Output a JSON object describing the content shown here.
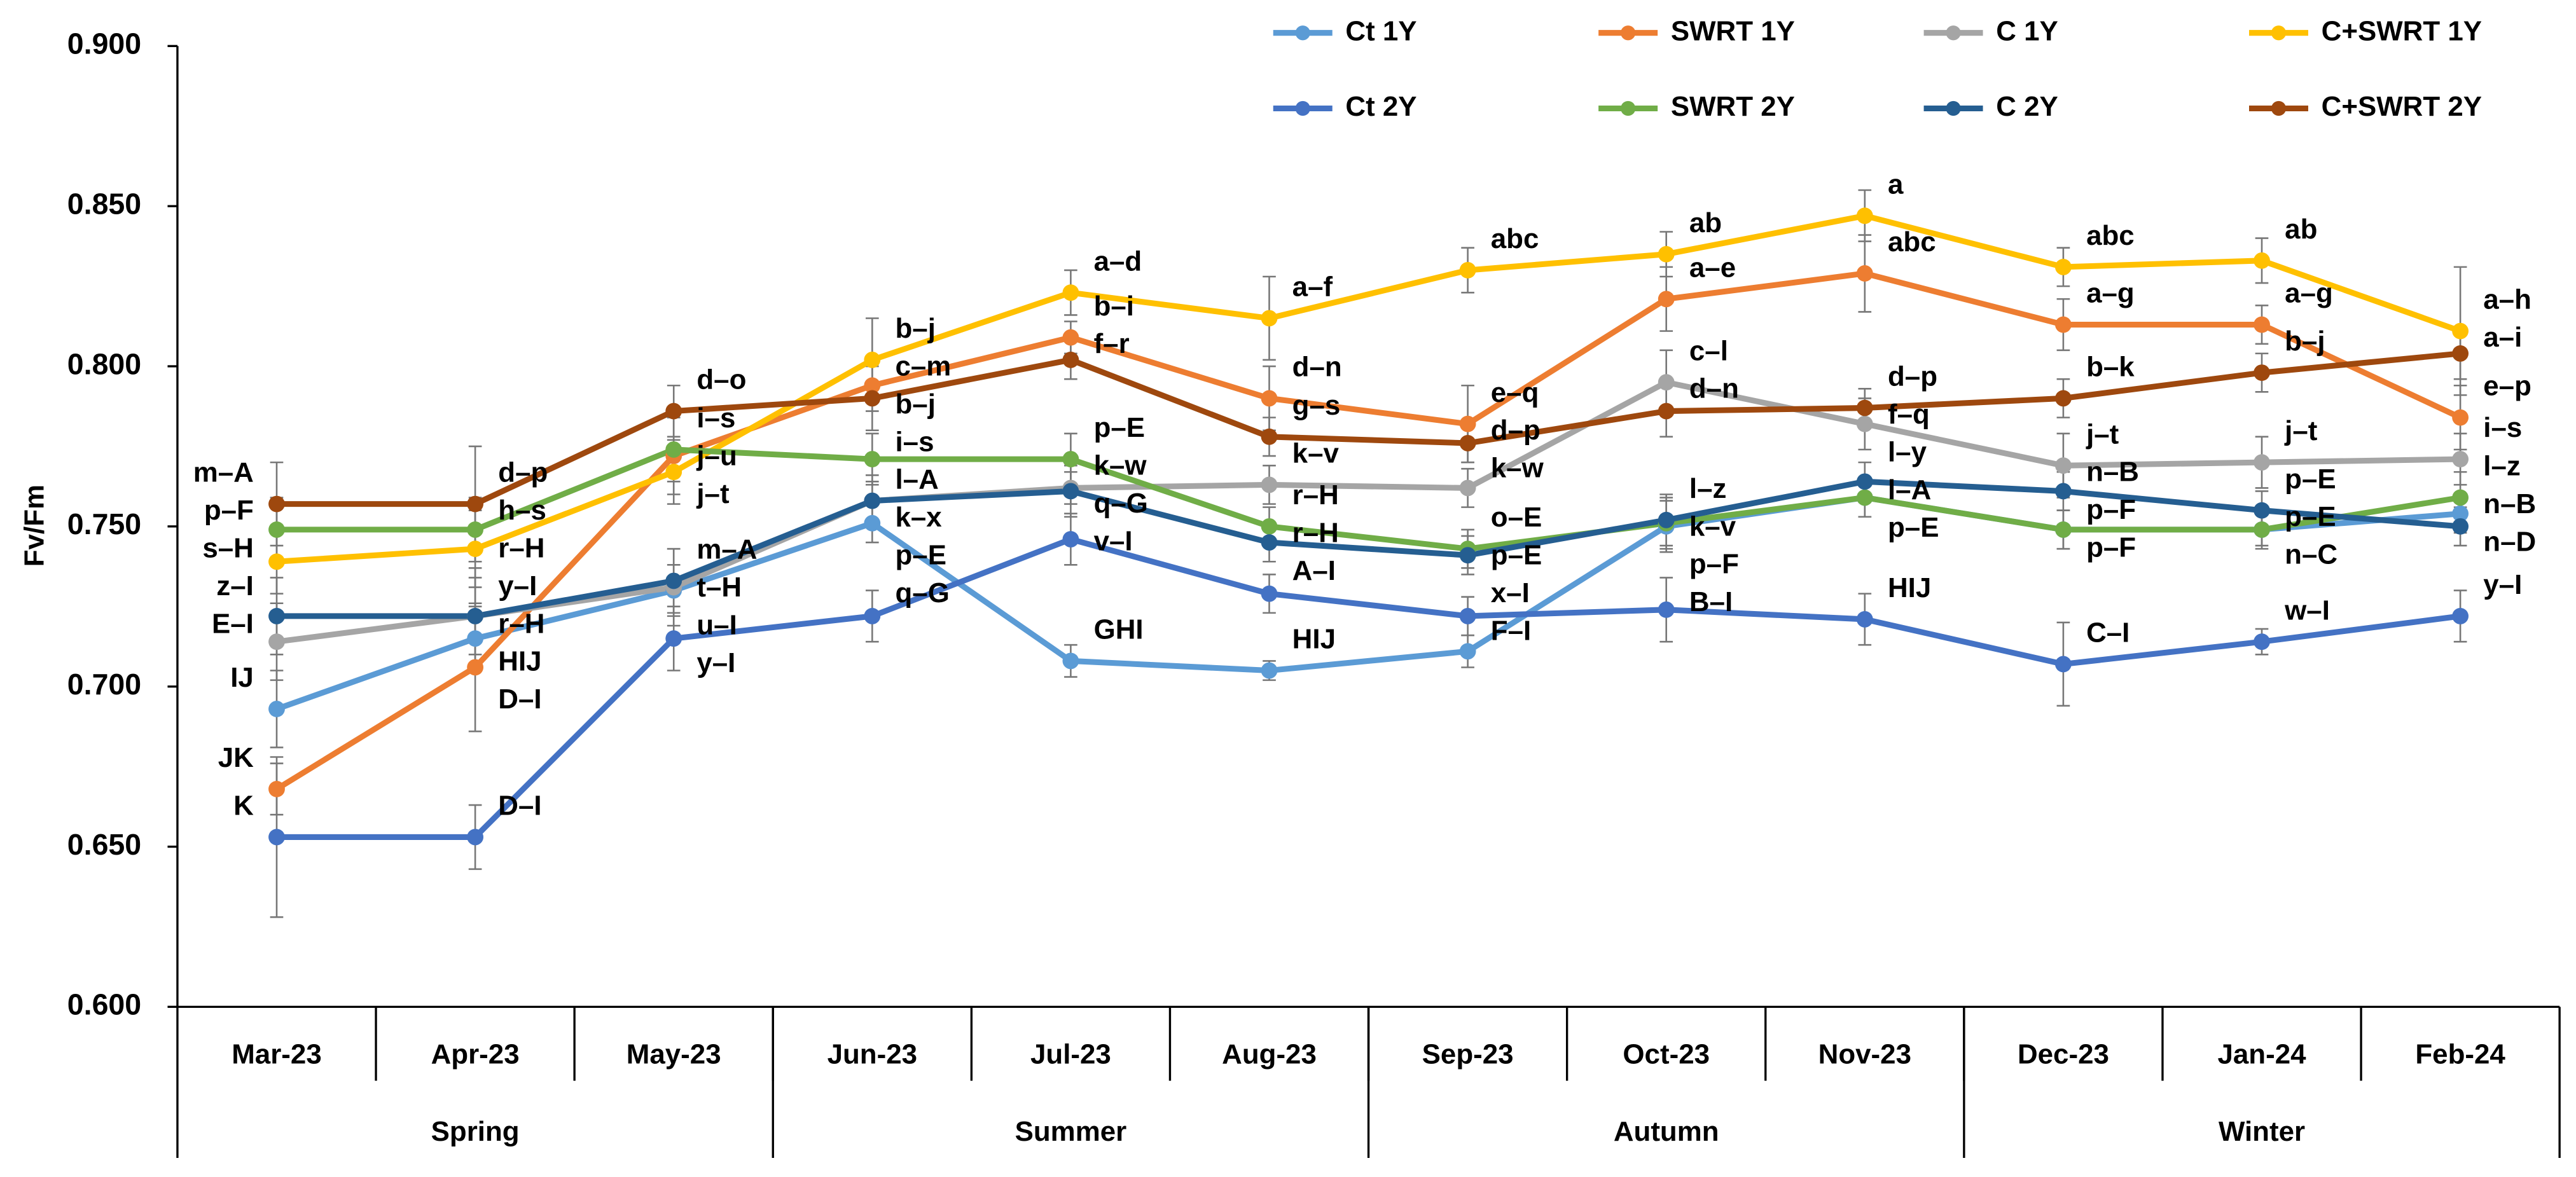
{
  "chart_data": {
    "type": "line",
    "y_label": "Fv/Fm",
    "categories": [
      "Mar-23",
      "Apr-23",
      "May-23",
      "Jun-23",
      "Jul-23",
      "Aug-23",
      "Sep-23",
      "Oct-23",
      "Nov-23",
      "Dec-23",
      "Jan-24",
      "Feb-24"
    ],
    "seasons": [
      "Spring",
      "Summer",
      "Autumn",
      "Winter"
    ],
    "ylim": [
      0.6,
      0.9
    ],
    "yticks": [
      {
        "value": 0.6,
        "label": "0.600"
      },
      {
        "value": 0.65,
        "label": "0.650"
      },
      {
        "value": 0.7,
        "label": "0.700"
      },
      {
        "value": 0.75,
        "label": "0.750"
      },
      {
        "value": 0.8,
        "label": "0.800"
      },
      {
        "value": 0.85,
        "label": "0.850"
      },
      {
        "value": 0.9,
        "label": "0.900"
      }
    ],
    "legend": "top-right",
    "series": [
      {
        "name": "Ct 1Y",
        "color": "#5b9bd5",
        "values": [
          0.693,
          0.715,
          0.73,
          0.751,
          0.708,
          0.705,
          0.711,
          0.75,
          0.759,
          0.749,
          0.749,
          0.754
        ],
        "errors": [
          0.012,
          0.01,
          0.008,
          0.006,
          0.005,
          0.003,
          0.005,
          0.008,
          0.006,
          0.006,
          0.005,
          0.006
        ],
        "letters": [
          "IJ",
          "HIJ",
          "u–I",
          "p–E",
          "GHI",
          "HIJ",
          "F–I",
          "p–F",
          "l–A",
          "p–F",
          "p–E",
          "n–B"
        ]
      },
      {
        "name": "SWRT 1Y",
        "color": "#ed7d31",
        "values": [
          0.668,
          0.706,
          0.772,
          0.794,
          0.809,
          0.79,
          0.782,
          0.821,
          0.829,
          0.813,
          0.813,
          0.784
        ],
        "errors": [
          0.008,
          0.02,
          0.012,
          0.008,
          0.005,
          0.01,
          0.012,
          0.01,
          0.012,
          0.008,
          0.006,
          0.01
        ],
        "letters": [
          "JK",
          "D–I",
          "j–u",
          "c–m",
          "b–i",
          "d–n",
          "e–q",
          "a–e",
          "abc",
          "a–g",
          "a–g",
          "e–p"
        ]
      },
      {
        "name": "C 1Y",
        "color": "#a5a5a5",
        "values": [
          0.714,
          0.722,
          0.731,
          0.758,
          0.762,
          0.763,
          0.762,
          0.795,
          0.782,
          0.769,
          0.77,
          0.771
        ],
        "errors": [
          0.012,
          0.015,
          0.012,
          0.006,
          0.005,
          0.006,
          0.006,
          0.01,
          0.008,
          0.01,
          0.008,
          0.008
        ],
        "letters": [
          "E–I",
          "y–I",
          "t–H",
          "l–A",
          "k–w",
          "k–v",
          "k–w",
          "c–l",
          "f–q",
          "j–t",
          "j–t",
          "i–s"
        ]
      },
      {
        "name": "C+SWRT 1Y",
        "color": "#ffc000",
        "values": [
          0.739,
          0.743,
          0.767,
          0.802,
          0.823,
          0.815,
          0.83,
          0.835,
          0.847,
          0.831,
          0.833,
          0.811
        ],
        "errors": [
          0.01,
          0.012,
          0.01,
          0.013,
          0.007,
          0.013,
          0.007,
          0.007,
          0.008,
          0.006,
          0.007,
          0.02
        ],
        "letters": [
          "s–H",
          "r–H",
          "j–t",
          "b–j",
          "a–d",
          "a–f",
          "abc",
          "ab",
          "a",
          "abc",
          "ab",
          "a–h"
        ]
      },
      {
        "name": "Ct 2Y",
        "color": "#4472c4",
        "values": [
          0.653,
          0.653,
          0.715,
          0.722,
          0.746,
          0.729,
          0.722,
          0.724,
          0.721,
          0.707,
          0.714,
          0.722
        ],
        "errors": [
          0.025,
          0.01,
          0.01,
          0.008,
          0.008,
          0.006,
          0.006,
          0.01,
          0.008,
          0.013,
          0.004,
          0.008
        ],
        "letters": [
          "K",
          "D–I",
          "y–I",
          "q–G",
          "v–I",
          "A–I",
          "x–I",
          "B–I",
          "HIJ",
          "C–I",
          "w–I",
          "y–I"
        ]
      },
      {
        "name": "SWRT 2Y",
        "color": "#70ad47",
        "values": [
          0.749,
          0.749,
          0.774,
          0.771,
          0.771,
          0.75,
          0.743,
          0.751,
          0.759,
          0.749,
          0.749,
          0.759
        ],
        "errors": [
          0.01,
          0.01,
          0.01,
          0.008,
          0.008,
          0.006,
          0.006,
          0.008,
          0.006,
          0.006,
          0.006,
          0.008
        ],
        "letters": [
          "p–F",
          "h–s",
          "i–s",
          "i–s",
          "p–E",
          "r–H",
          "o–E",
          "k–v",
          "p–E",
          "p–F",
          "n–C",
          "l–z"
        ]
      },
      {
        "name": "C 2Y",
        "color": "#255e91",
        "values": [
          0.722,
          0.722,
          0.733,
          0.758,
          0.761,
          0.745,
          0.741,
          0.752,
          0.764,
          0.761,
          0.755,
          0.75
        ],
        "errors": [
          0.012,
          0.012,
          0.01,
          0.008,
          0.008,
          0.006,
          0.006,
          0.008,
          0.006,
          0.006,
          0.006,
          0.006
        ],
        "letters": [
          "z–I",
          "r–H",
          "m–A",
          "k–x",
          "q–G",
          "r–H",
          "p–E",
          "l–z",
          "l–y",
          "n–B",
          "p–E",
          "n–D"
        ]
      },
      {
        "name": "C+SWRT 2Y",
        "color": "#9e480e",
        "values": [
          0.757,
          0.757,
          0.786,
          0.79,
          0.802,
          0.778,
          0.776,
          0.786,
          0.787,
          0.79,
          0.798,
          0.804
        ],
        "errors": [
          0.013,
          0.018,
          0.008,
          0.01,
          0.006,
          0.006,
          0.006,
          0.008,
          0.006,
          0.006,
          0.006,
          0.008
        ],
        "letters": [
          "m–A",
          "d–p",
          "d–o",
          "b–j",
          "f–r",
          "g–s",
          "d–p",
          "d–n",
          "d–p",
          "b–k",
          "b–j",
          "a–i"
        ]
      }
    ]
  }
}
